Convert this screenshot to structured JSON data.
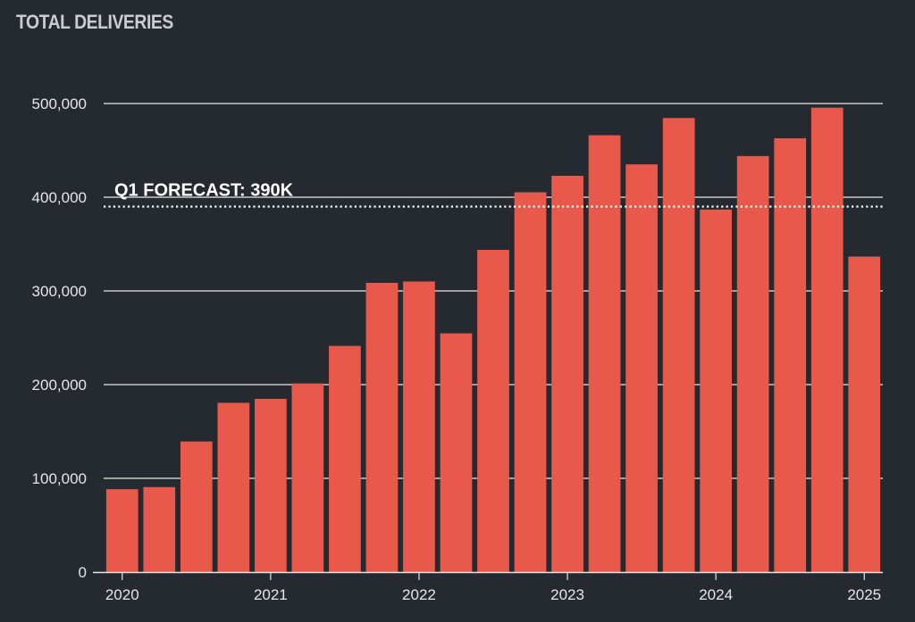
{
  "chart_data": {
    "type": "bar",
    "title": "TOTAL DELIVERIES",
    "xlabel": "",
    "ylabel": "",
    "categories": [
      "2020 Q1",
      "2020 Q2",
      "2020 Q3",
      "2020 Q4",
      "2021 Q1",
      "2021 Q2",
      "2021 Q3",
      "2021 Q4",
      "2022 Q1",
      "2022 Q2",
      "2022 Q3",
      "2022 Q4",
      "2023 Q1",
      "2023 Q2",
      "2023 Q3",
      "2023 Q4",
      "2024 Q1",
      "2024 Q2",
      "2024 Q3",
      "2024 Q4",
      "2025 Q1"
    ],
    "values": [
      88400,
      90650,
      139300,
      180570,
      184800,
      201250,
      241300,
      308600,
      310048,
      254695,
      343830,
      405278,
      422875,
      466140,
      435059,
      484507,
      386810,
      443956,
      462890,
      495570,
      336681
    ],
    "ylim": [
      0,
      500000
    ],
    "yticks": [
      0,
      100000,
      200000,
      300000,
      400000,
      500000
    ],
    "ytick_labels": [
      "0",
      "100,000",
      "200,000",
      "300,000",
      "400,000",
      "500,000"
    ],
    "xtick_labels": [
      {
        "label": "2020",
        "index": 0
      },
      {
        "label": "2021",
        "index": 4
      },
      {
        "label": "2022",
        "index": 8
      },
      {
        "label": "2023",
        "index": 12
      },
      {
        "label": "2024",
        "index": 16
      },
      {
        "label": "2025",
        "index": 20
      }
    ],
    "grid": true,
    "annotations": [
      {
        "type": "hline",
        "value": 390000,
        "style": "dotted",
        "label": "Q1 FORECAST: 390K"
      }
    ]
  },
  "colors": {
    "background": "#252a31",
    "bar": "#e8594c",
    "grid": "#e6e6e6",
    "text": "#e6e6e6",
    "title": "#c9ccd1",
    "forecast": "#ffffff"
  }
}
